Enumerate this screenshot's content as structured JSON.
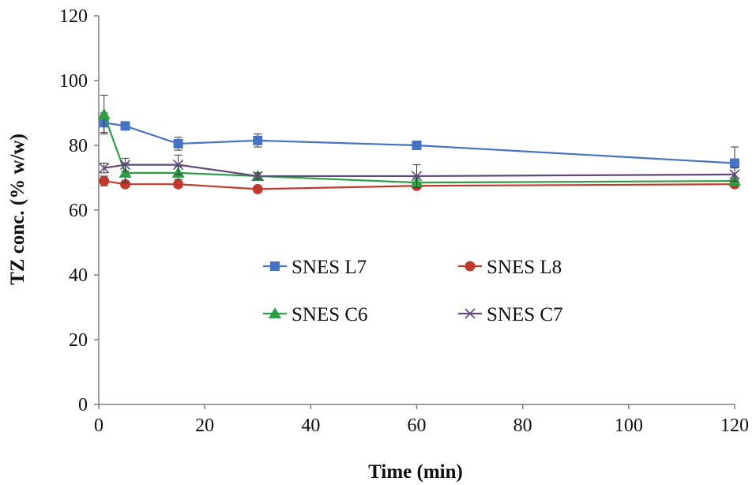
{
  "chart_data": {
    "type": "line",
    "title": "",
    "xlabel": "Time (min)",
    "ylabel": "TZ conc. (% w/w)",
    "xlim": [
      0,
      120
    ],
    "ylim": [
      0,
      120
    ],
    "x_ticks": [
      0,
      20,
      40,
      60,
      80,
      100,
      120
    ],
    "y_ticks": [
      0,
      20,
      40,
      60,
      80,
      100,
      120
    ],
    "grid": false,
    "legend_position": "center",
    "x": [
      1,
      5,
      15,
      30,
      60,
      120
    ],
    "series": [
      {
        "name": "SNES L7",
        "marker": "square",
        "color": "#4472C4",
        "values": [
          87,
          86,
          80.5,
          81.5,
          80,
          74.5
        ],
        "error": [
          3,
          1,
          2,
          2,
          1,
          5
        ]
      },
      {
        "name": "SNES L8",
        "marker": "circle",
        "color": "#C0392B",
        "values": [
          69,
          68,
          68,
          66.5,
          67.5,
          68
        ],
        "error": [
          1.5,
          1,
          1,
          1,
          1,
          1
        ]
      },
      {
        "name": "SNES C6",
        "marker": "triangle",
        "color": "#2E9E46",
        "values": [
          89.5,
          71.5,
          71.5,
          70.5,
          68.5,
          69
        ],
        "error": [
          6,
          3,
          2,
          1,
          1.5,
          1
        ]
      },
      {
        "name": "SNES C7",
        "marker": "cross",
        "color": "#604A7B",
        "values": [
          73,
          74,
          74,
          70.5,
          70.5,
          71
        ],
        "error": [
          1.5,
          2,
          3,
          1,
          3.5,
          2
        ]
      }
    ]
  }
}
